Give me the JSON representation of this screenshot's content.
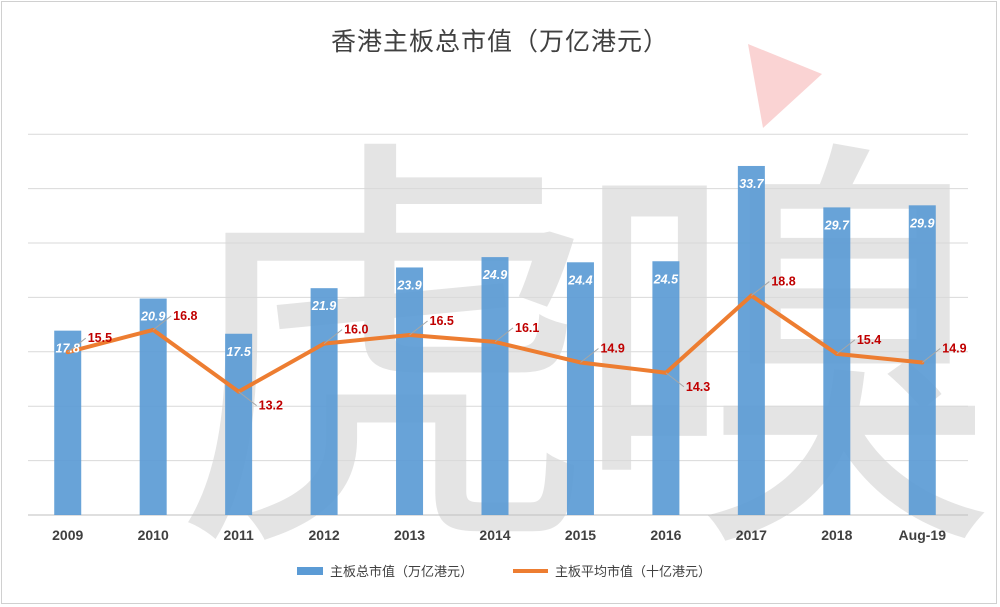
{
  "chart_data": {
    "type": "bar",
    "title": "香港主板总市值（万亿港元）",
    "categories": [
      "2009",
      "2010",
      "2011",
      "2012",
      "2013",
      "2014",
      "2015",
      "2016",
      "2017",
      "2018",
      "Aug-19"
    ],
    "series": [
      {
        "name": "主板总市值（万亿港元）",
        "kind": "bar",
        "color": "#5b9bd5",
        "values": [
          17.8,
          20.9,
          17.5,
          21.9,
          23.9,
          24.9,
          24.4,
          24.5,
          33.7,
          29.7,
          29.9
        ]
      },
      {
        "name": "主板平均市值（十亿港元）",
        "kind": "line",
        "color": "#ed7d31",
        "values": [
          15.5,
          16.8,
          13.2,
          16.0,
          16.5,
          16.1,
          14.9,
          14.3,
          18.8,
          15.4,
          14.9
        ]
      }
    ],
    "ylim": [
      0,
      42
    ],
    "grid": true,
    "legend": "bottom",
    "xlabel": "",
    "ylabel": ""
  },
  "watermark": {
    "text": "虎嗅",
    "accent_color": "#f08080"
  }
}
